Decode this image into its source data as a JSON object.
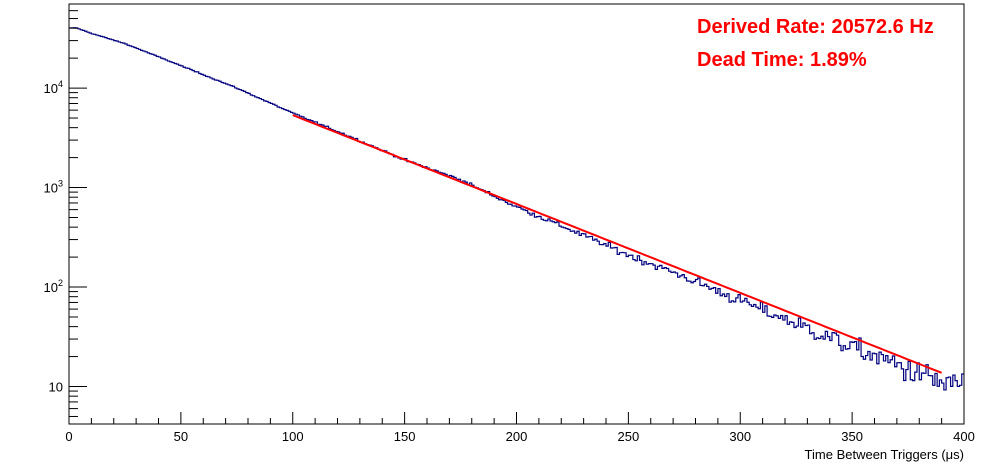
{
  "chart_data": {
    "type": "line",
    "title": "",
    "xlabel": "Time Between Triggers (μs)",
    "ylabel": "",
    "xlim": [
      0,
      400
    ],
    "ylim": [
      4.2,
      70000
    ],
    "log_y": true,
    "grid": false,
    "legend": "none",
    "x_ticks": [
      0,
      50,
      100,
      150,
      200,
      250,
      300,
      350,
      400
    ],
    "y_tick_labels": [
      {
        "value": 10,
        "base": "10",
        "exp": ""
      },
      {
        "value": 100,
        "base": "10",
        "exp": "2"
      },
      {
        "value": 1000,
        "base": "10",
        "exp": "3"
      },
      {
        "value": 10000,
        "base": "10",
        "exp": "4"
      }
    ],
    "series": [
      {
        "kind": "histogram",
        "color": "#00007f",
        "bin_width_us": 1,
        "points": [
          [
            0,
            40000
          ],
          [
            3,
            40500
          ],
          [
            5,
            39000
          ],
          [
            10,
            35500
          ],
          [
            25,
            28000
          ],
          [
            50,
            16800
          ],
          [
            75,
            10000
          ],
          [
            100,
            5600
          ],
          [
            125,
            3300
          ],
          [
            150,
            1900
          ],
          [
            175,
            1200
          ],
          [
            200,
            640
          ],
          [
            225,
            370
          ],
          [
            250,
            210
          ],
          [
            275,
            127
          ],
          [
            300,
            73
          ],
          [
            325,
            43
          ],
          [
            350,
            25
          ],
          [
            375,
            15
          ],
          [
            390,
            11
          ],
          [
            395,
            10
          ],
          [
            400,
            12
          ]
        ]
      },
      {
        "kind": "fit",
        "color": "#ff0000",
        "x_range": [
          100,
          390
        ],
        "rate_hz": 20572.6,
        "y_at_100": 5350
      }
    ],
    "annotations": [
      {
        "text": "Derived Rate: 20572.6 Hz",
        "color": "#ff0000"
      },
      {
        "text": "Dead Time: 1.89%",
        "color": "#ff0000"
      }
    ]
  }
}
